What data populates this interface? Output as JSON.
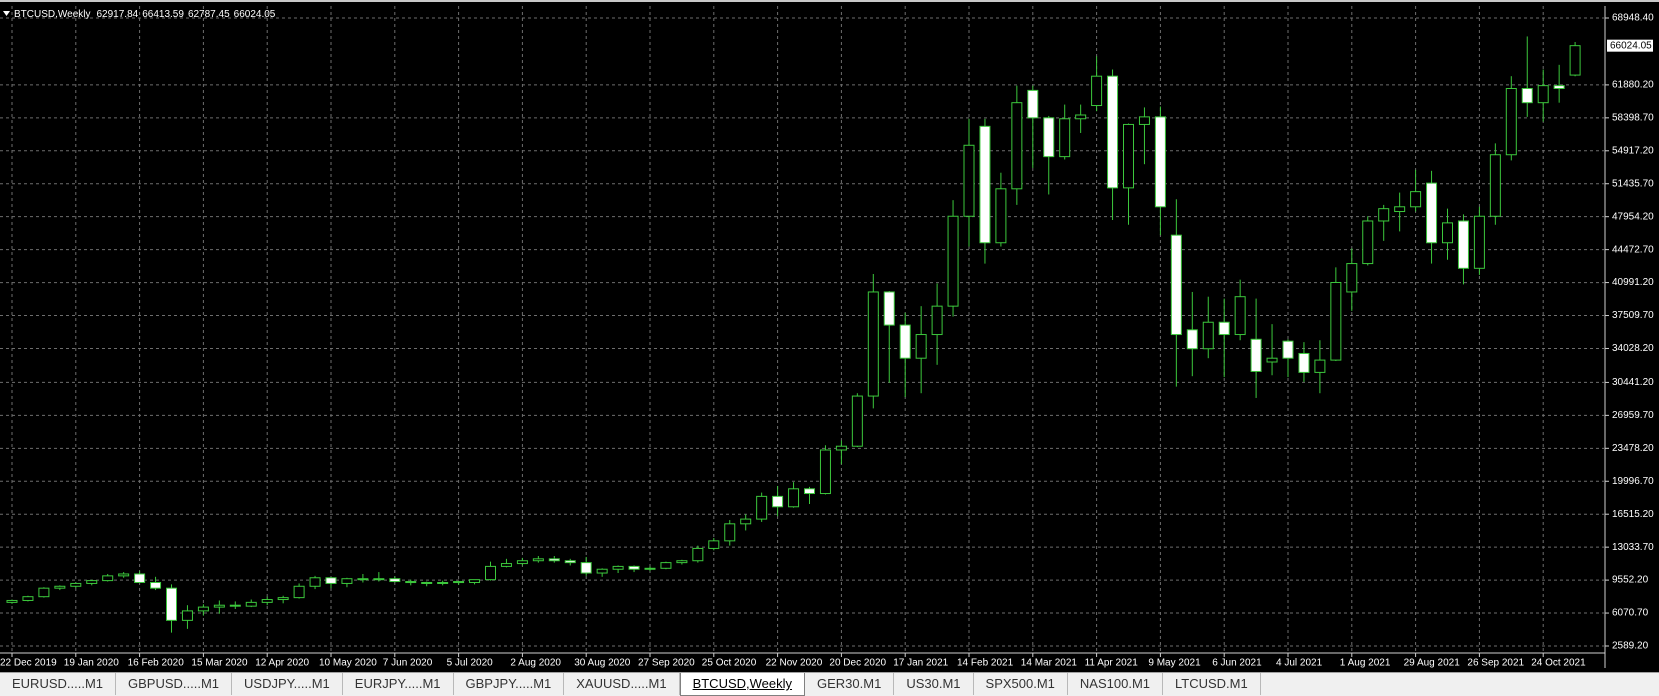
{
  "chart_data": {
    "type": "candlestick",
    "title": "BTCUSD,Weekly",
    "categories": [
      "22 Dec 2019",
      null,
      null,
      null,
      "19 Jan 2020",
      null,
      null,
      null,
      "16 Feb 2020",
      null,
      null,
      null,
      "15 Mar 2020",
      null,
      null,
      null,
      "12 Apr 2020",
      null,
      null,
      null,
      "10 May 2020",
      null,
      null,
      null,
      "7 Jun 2020",
      null,
      null,
      null,
      "5 Jul 2020",
      null,
      null,
      null,
      "2 Aug 2020",
      null,
      null,
      null,
      "30 Aug 2020",
      null,
      null,
      null,
      "27 Sep 2020",
      null,
      null,
      null,
      "25 Oct 2020",
      null,
      null,
      null,
      "22 Nov 2020",
      null,
      null,
      null,
      "20 Dec 2020",
      null,
      null,
      null,
      "17 Jan 2021",
      null,
      null,
      null,
      "14 Feb 2021",
      null,
      null,
      null,
      "14 Mar 2021",
      null,
      null,
      null,
      "11 Apr 2021",
      null,
      null,
      null,
      "9 May 2021",
      null,
      null,
      null,
      "6 Jun 2021",
      null,
      null,
      null,
      "4 Jul 2021",
      null,
      null,
      null,
      "1 Aug 2021",
      null,
      null,
      null,
      "29 Aug 2021",
      null,
      null,
      null,
      "26 Sep 2021",
      null,
      null,
      null,
      "24 Oct 2021",
      null,
      null
    ],
    "open": [
      7200,
      7400,
      7800,
      8700,
      8900,
      9200,
      9500,
      10000,
      10200,
      9300,
      8700,
      5300,
      6300,
      6700,
      6900,
      6800,
      7200,
      7500,
      7700,
      8900,
      9800,
      9200,
      9700,
      9600,
      9700,
      9400,
      9300,
      9200,
      9300,
      9300,
      9600,
      11000,
      11300,
      11600,
      11800,
      11600,
      11400,
      10300,
      10700,
      11000,
      10700,
      10800,
      11400,
      11600,
      12900,
      13700,
      15500,
      16000,
      18400,
      17300,
      19200,
      18700,
      23300,
      23700,
      29000,
      40000,
      36500,
      33000,
      35500,
      38500,
      48000,
      57500,
      45200,
      50900,
      61300,
      58400,
      54300,
      58300,
      59700,
      62800,
      51000,
      57700,
      58500,
      46000,
      36000,
      34000,
      36800,
      35500,
      35000,
      32600,
      34800,
      33500,
      31500,
      32800,
      40000,
      43000,
      47500,
      48500,
      49000,
      51500,
      45200,
      47500,
      42500,
      48000,
      54500,
      61500,
      60000,
      61800,
      62917.84
    ],
    "high": [
      7500,
      7900,
      8800,
      9000,
      9300,
      9600,
      10200,
      10400,
      10500,
      9900,
      9100,
      6900,
      7000,
      7400,
      7300,
      7500,
      7800,
      7900,
      9200,
      10000,
      9900,
      9800,
      10200,
      10400,
      9950,
      9600,
      9400,
      9500,
      9450,
      9450,
      11500,
      11800,
      11900,
      12100,
      12100,
      11800,
      12000,
      10800,
      11100,
      11100,
      11000,
      11500,
      11700,
      13200,
      14000,
      15900,
      16500,
      18800,
      19500,
      19900,
      19400,
      23800,
      24300,
      29300,
      41900,
      40100,
      37800,
      38500,
      40900,
      49700,
      58300,
      58300,
      52600,
      61800,
      61800,
      58600,
      59800,
      59800,
      64900,
      63500,
      57800,
      59500,
      59600,
      49800,
      40000,
      39500,
      39300,
      41300,
      39300,
      36600,
      35000,
      34700,
      34900,
      42600,
      44600,
      48000,
      49200,
      50500,
      52900,
      52800,
      48800,
      48200,
      49000,
      55700,
      62800,
      67000,
      63500,
      64000,
      66413.59
    ],
    "low": [
      7050,
      7300,
      7700,
      8500,
      8700,
      9000,
      9400,
      9800,
      9300,
      8500,
      4000,
      4400,
      5800,
      6000,
      6500,
      6700,
      6900,
      7100,
      7600,
      8600,
      8700,
      8800,
      9300,
      9400,
      9300,
      9000,
      8900,
      9000,
      9050,
      9100,
      9500,
      10900,
      11100,
      11400,
      11400,
      11100,
      10000,
      9900,
      10300,
      10400,
      10500,
      10700,
      11200,
      11400,
      12700,
      13200,
      14800,
      15700,
      16300,
      17200,
      17600,
      18600,
      21800,
      23600,
      27700,
      30400,
      28900,
      29300,
      32300,
      37400,
      44800,
      43000,
      44800,
      49200,
      53100,
      50300,
      54000,
      56800,
      59100,
      47600,
      47100,
      53500,
      46000,
      30000,
      31100,
      33000,
      31000,
      34900,
      28800,
      31200,
      31000,
      30500,
      29300,
      32700,
      38000,
      42800,
      45400,
      46400,
      48500,
      43000,
      43400,
      40800,
      41800,
      47100,
      53900,
      58500,
      58000,
      60000,
      62787.45
    ],
    "close": [
      7400,
      7800,
      8700,
      8900,
      9200,
      9500,
      10000,
      10200,
      9300,
      8700,
      5300,
      6300,
      6700,
      6900,
      6800,
      7200,
      7500,
      7700,
      8900,
      9800,
      9200,
      9700,
      9600,
      9700,
      9400,
      9300,
      9200,
      9300,
      9400,
      9600,
      11000,
      11300,
      11600,
      11800,
      11600,
      11400,
      10300,
      10700,
      11000,
      10700,
      10800,
      11400,
      11600,
      12900,
      13700,
      15500,
      16000,
      18400,
      17300,
      19200,
      18700,
      23300,
      23700,
      29000,
      40000,
      36500,
      33000,
      35500,
      38500,
      48000,
      55500,
      45200,
      50900,
      60000,
      58400,
      54300,
      58300,
      58700,
      62800,
      51000,
      57700,
      58500,
      49000,
      35500,
      34000,
      36800,
      35500,
      39500,
      31600,
      33000,
      33000,
      31500,
      32800,
      41000,
      43000,
      47500,
      48800,
      49000,
      50600,
      45200,
      47300,
      42500,
      48000,
      54500,
      61500,
      60000,
      61800,
      61500,
      66024.05
    ],
    "ylim": [
      2589.2,
      68948.4
    ],
    "yticks": [
      {
        "value": 2589.2,
        "label": "2589.20"
      },
      {
        "value": 6070.7,
        "label": "6070.70"
      },
      {
        "value": 9552.2,
        "label": "9552.20"
      },
      {
        "value": 13033.7,
        "label": "13033.70"
      },
      {
        "value": 16515.2,
        "label": "16515.20"
      },
      {
        "value": 19996.7,
        "label": "19996.70"
      },
      {
        "value": 23478.2,
        "label": "23478.20"
      },
      {
        "value": 26959.7,
        "label": "26959.70"
      },
      {
        "value": 30441.2,
        "label": "30441.20"
      },
      {
        "value": 34028.2,
        "label": "34028.20"
      },
      {
        "value": 37509.7,
        "label": "37509.70"
      },
      {
        "value": 40991.2,
        "label": "40991.20"
      },
      {
        "value": 44472.7,
        "label": "44472.70"
      },
      {
        "value": 47954.2,
        "label": "47954.20"
      },
      {
        "value": 51435.7,
        "label": "51435.70"
      },
      {
        "value": 54917.2,
        "label": "54917.20"
      },
      {
        "value": 58398.7,
        "label": "58398.70"
      },
      {
        "value": 61880.2,
        "label": "61880.20"
      },
      {
        "value": 68948.4,
        "label": "68948.40"
      }
    ],
    "grid": true,
    "up_color": "#000000",
    "down_color": "#ffffff",
    "outline_color": "#3cc83c",
    "grid_color": "#6e6e6e",
    "background": "#000000"
  },
  "tabs": [
    {
      "label": "EURUSD.....M1",
      "active": false
    },
    {
      "label": "GBPUSD.....M1",
      "active": false
    },
    {
      "label": "USDJPY.....M1",
      "active": false
    },
    {
      "label": "EURJPY.....M1",
      "active": false
    },
    {
      "label": "GBPJPY.....M1",
      "active": false
    },
    {
      "label": "XAUUSD.....M1",
      "active": false
    },
    {
      "label": "BTCUSD,Weekly",
      "active": true
    },
    {
      "label": "GER30.M1",
      "active": false
    },
    {
      "label": "US30.M1",
      "active": false
    },
    {
      "label": "SPX500.M1",
      "active": false
    },
    {
      "label": "NAS100.M1",
      "active": false
    },
    {
      "label": "LTCUSD.M1",
      "active": false
    }
  ]
}
